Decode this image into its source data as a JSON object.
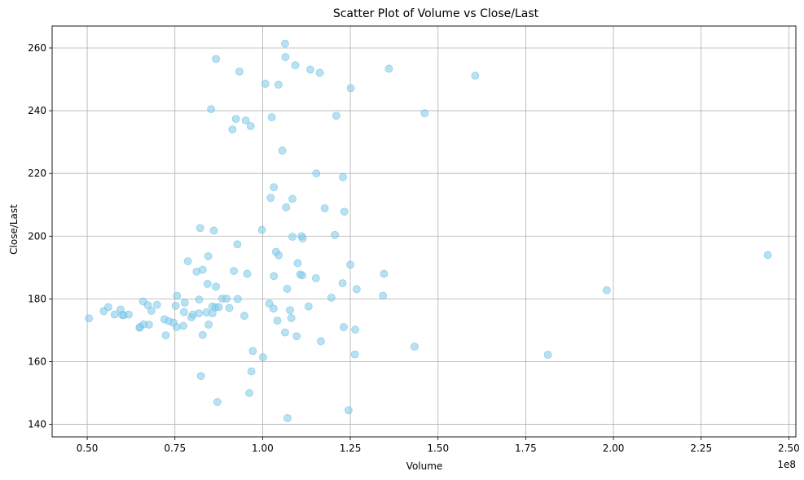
{
  "chart_data": {
    "type": "scatter",
    "title": "Scatter Plot of Volume vs Close/Last",
    "xlabel": "Volume",
    "ylabel": "Close/Last",
    "x_offset_label": "1e8",
    "xlim": [
      0.4,
      2.52
    ],
    "ylim": [
      136,
      267
    ],
    "x_ticks": [
      0.5,
      0.75,
      1.0,
      1.25,
      1.5,
      1.75,
      2.0,
      2.25,
      2.5
    ],
    "x_tick_labels": [
      "0.50",
      "0.75",
      "1.00",
      "1.25",
      "1.50",
      "1.75",
      "2.00",
      "2.25",
      "2.50"
    ],
    "y_ticks": [
      140,
      160,
      180,
      200,
      220,
      240,
      260
    ],
    "y_tick_labels": [
      "140",
      "160",
      "180",
      "200",
      "220",
      "240",
      "260"
    ],
    "grid": true,
    "point_color": "#87CEEB",
    "point_edge_color": "#6ab8dc",
    "x_units_note": "x values in units of 1e8 shares",
    "points": [
      [
        0.505,
        173.8
      ],
      [
        0.547,
        176.1
      ],
      [
        0.56,
        177.4
      ],
      [
        0.578,
        175.0
      ],
      [
        0.595,
        176.6
      ],
      [
        0.6,
        174.9
      ],
      [
        0.604,
        174.8
      ],
      [
        0.618,
        175.0
      ],
      [
        0.649,
        170.8
      ],
      [
        0.651,
        171.1
      ],
      [
        0.659,
        179.2
      ],
      [
        0.661,
        171.9
      ],
      [
        0.673,
        178.0
      ],
      [
        0.676,
        171.8
      ],
      [
        0.683,
        176.2
      ],
      [
        0.699,
        178.1
      ],
      [
        0.72,
        173.5
      ],
      [
        0.724,
        168.4
      ],
      [
        0.733,
        172.9
      ],
      [
        0.746,
        172.4
      ],
      [
        0.752,
        177.8
      ],
      [
        0.755,
        171.0
      ],
      [
        0.756,
        181.0
      ],
      [
        0.774,
        171.4
      ],
      [
        0.776,
        175.8
      ],
      [
        0.778,
        178.8
      ],
      [
        0.787,
        192.0
      ],
      [
        0.797,
        174.1
      ],
      [
        0.801,
        175.0
      ],
      [
        0.812,
        188.7
      ],
      [
        0.818,
        175.4
      ],
      [
        0.819,
        179.8
      ],
      [
        0.822,
        202.6
      ],
      [
        0.824,
        155.4
      ],
      [
        0.829,
        168.5
      ],
      [
        0.829,
        189.3
      ],
      [
        0.84,
        175.7
      ],
      [
        0.843,
        184.8
      ],
      [
        0.845,
        193.6
      ],
      [
        0.846,
        171.8
      ],
      [
        0.853,
        240.5
      ],
      [
        0.857,
        175.4
      ],
      [
        0.857,
        177.6
      ],
      [
        0.861,
        201.8
      ],
      [
        0.866,
        177.3
      ],
      [
        0.867,
        256.5
      ],
      [
        0.867,
        183.9
      ],
      [
        0.871,
        147.1
      ],
      [
        0.875,
        177.4
      ],
      [
        0.885,
        180.1
      ],
      [
        0.897,
        180.1
      ],
      [
        0.905,
        177.1
      ],
      [
        0.914,
        234.0
      ],
      [
        0.918,
        188.9
      ],
      [
        0.924,
        237.4
      ],
      [
        0.928,
        197.4
      ],
      [
        0.929,
        180.0
      ],
      [
        0.934,
        252.5
      ],
      [
        0.948,
        174.6
      ],
      [
        0.952,
        236.9
      ],
      [
        0.956,
        188.0
      ],
      [
        0.962,
        150.0
      ],
      [
        0.966,
        235.1
      ],
      [
        0.968,
        156.9
      ],
      [
        0.972,
        163.4
      ],
      [
        0.998,
        202.0
      ],
      [
        1.001,
        161.4
      ],
      [
        1.008,
        248.6
      ],
      [
        1.019,
        178.5
      ],
      [
        1.023,
        212.2
      ],
      [
        1.026,
        237.9
      ],
      [
        1.031,
        176.9
      ],
      [
        1.032,
        187.3
      ],
      [
        1.032,
        215.6
      ],
      [
        1.038,
        195.0
      ],
      [
        1.042,
        173.1
      ],
      [
        1.045,
        248.3
      ],
      [
        1.046,
        193.9
      ],
      [
        1.056,
        227.3
      ],
      [
        1.064,
        169.3
      ],
      [
        1.064,
        261.4
      ],
      [
        1.065,
        257.1
      ],
      [
        1.067,
        209.2
      ],
      [
        1.07,
        183.2
      ],
      [
        1.071,
        142.0
      ],
      [
        1.078,
        176.4
      ],
      [
        1.082,
        173.9
      ],
      [
        1.085,
        199.8
      ],
      [
        1.085,
        211.9
      ],
      [
        1.093,
        254.5
      ],
      [
        1.097,
        168.1
      ],
      [
        1.1,
        191.4
      ],
      [
        1.107,
        187.8
      ],
      [
        1.111,
        200.0
      ],
      [
        1.113,
        187.5
      ],
      [
        1.114,
        199.3
      ],
      [
        1.131,
        177.6
      ],
      [
        1.136,
        253.1
      ],
      [
        1.152,
        186.6
      ],
      [
        1.153,
        220.0
      ],
      [
        1.163,
        252.1
      ],
      [
        1.166,
        166.5
      ],
      [
        1.177,
        208.9
      ],
      [
        1.196,
        180.4
      ],
      [
        1.206,
        200.4
      ],
      [
        1.21,
        238.4
      ],
      [
        1.228,
        185.0
      ],
      [
        1.229,
        218.8
      ],
      [
        1.231,
        171.0
      ],
      [
        1.233,
        207.8
      ],
      [
        1.245,
        144.5
      ],
      [
        1.25,
        190.9
      ],
      [
        1.251,
        247.2
      ],
      [
        1.263,
        162.3
      ],
      [
        1.264,
        170.2
      ],
      [
        1.268,
        183.1
      ],
      [
        1.343,
        181.0
      ],
      [
        1.346,
        188.0
      ],
      [
        1.36,
        253.4
      ],
      [
        1.433,
        164.8
      ],
      [
        1.462,
        239.2
      ],
      [
        1.606,
        251.2
      ],
      [
        1.813,
        162.2
      ],
      [
        1.981,
        182.8
      ],
      [
        2.44,
        194.0
      ]
    ]
  }
}
